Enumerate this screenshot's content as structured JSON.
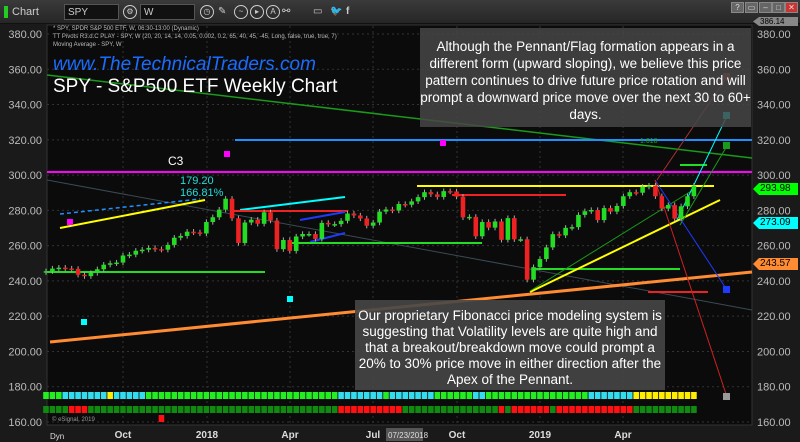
{
  "window": {
    "app_label": "Chart",
    "symbol": "SPY",
    "interval": "W",
    "buttons": [
      "?",
      "▭",
      "–",
      "□",
      "✕"
    ]
  },
  "legend": {
    "line1": "* SPY, SPDR S&P 500 ETF, W, 06:30-13:00 (Dynamic)",
    "line2": "TT Pivots R3.d.C PLAY - SPY, W (20, 20, 14, 14, 0.05, 0.002, 0.2, 65, 40, 45, -45, Long, false, true, true, 7)",
    "line3": "Moving Average - SPY, W"
  },
  "website": "www.TheTechnicalTraders.com",
  "title": "SPY - S&P500 ETF Weekly Chart",
  "note_top": "Although the Pennant/Flag formation appears in a different form (upward sloping), we believe this price pattern continues to drive future price rotation and will prompt a downward price move over the next 30 to 60+ days.",
  "note_bottom": "Our proprietary Fibonacci price modeling system is suggesting that Volatility levels are quite high and that a breakout/breakdown move could prompt a 20% to 30% price move in either direction after the Apex of the Pennant.",
  "annotations": {
    "c3": "C3",
    "peak_price": "179.20",
    "peak_pct": "166.81%",
    "fib": "1.618",
    "copyright": "© eSignal, 2019",
    "dyn": "Dyn",
    "cursor_date": "07/23/2018"
  },
  "price_tags": {
    "top": "386.14",
    "last": "293.98",
    "cyan": "273.09",
    "orange": "243.57"
  },
  "colors": {
    "up": "#22dd22",
    "down": "#ee2222",
    "last": "#00ff00",
    "cyan": "#00ffff",
    "orange": "#ff8c32",
    "magenta": "#ff00ff",
    "blue": "#1e90ff",
    "yellow": "#ffff00"
  },
  "chart_data": {
    "type": "candlestick",
    "ylim": [
      160,
      380
    ],
    "yticks": [
      380,
      360,
      340,
      320,
      300,
      280,
      260,
      240,
      220,
      200,
      180,
      160
    ],
    "xticks": [
      "Oct",
      "2018",
      "Apr",
      "Jul",
      "Oct",
      "2019",
      "Apr"
    ],
    "weekly_close": [
      245.5,
      247,
      247.5,
      247,
      246.8,
      243.5,
      242.7,
      244.5,
      246.6,
      249.2,
      250,
      250.4,
      254.4,
      254.9,
      257.1,
      257.7,
      258.7,
      258,
      257.7,
      260.4,
      264.5,
      265.5,
      267.9,
      267.5,
      266.9,
      273.4,
      276.1,
      280.4,
      286.6,
      275.5,
      261.5,
      273.1,
      274.7,
      272.4,
      278.9,
      274.2,
      258,
      263.2,
      257,
      265.2,
      266.6,
      266.6,
      263.8,
      272.9,
      272.1,
      272.2,
      274.1,
      278.2,
      277.1,
      275.4,
      271.3,
      273.1,
      279.3,
      280.5,
      279.9,
      283.6,
      283.2,
      285.1,
      287.5,
      290.3,
      289.1,
      287.6,
      290.9,
      290.7,
      287.8,
      276,
      276.3,
      265.3,
      273.4,
      270.2,
      273.7,
      263.3,
      275.6,
      263.6,
      263.6,
      240.7,
      247.8,
      252.4,
      259,
      266.5,
      265.8,
      270.1,
      270.5,
      277.4,
      279.5,
      280.2,
      274.5,
      281.3,
      279.3,
      282.5,
      288,
      290.3,
      290,
      293.4,
      294,
      288,
      281,
      283,
      275.3,
      282.3,
      288,
      293.98
    ],
    "horizontal_levels": {
      "magenta": 287,
      "blue": 320
    },
    "indicator_row1": "GGGCCCCCCCYCCCCCGGGGGGGGGGGGGGGGGGGGGGGGGGGGGGCCCCCCCGCCCCCCCGGGGGGCCGGGGGGGGGGGGGGGGCCCCCCCYYYYYYYYYY",
    "indicator_row2": "DDDDRRRDDDDDDDDDDDDDDDDDDDDDDDDDDDDDDDDDDDDDDDRRRRRRRRRRDDDDDDDDDDDDDDDRDRRRRRRDRRRRRRRRRRRRDDDDDDDDDD"
  }
}
